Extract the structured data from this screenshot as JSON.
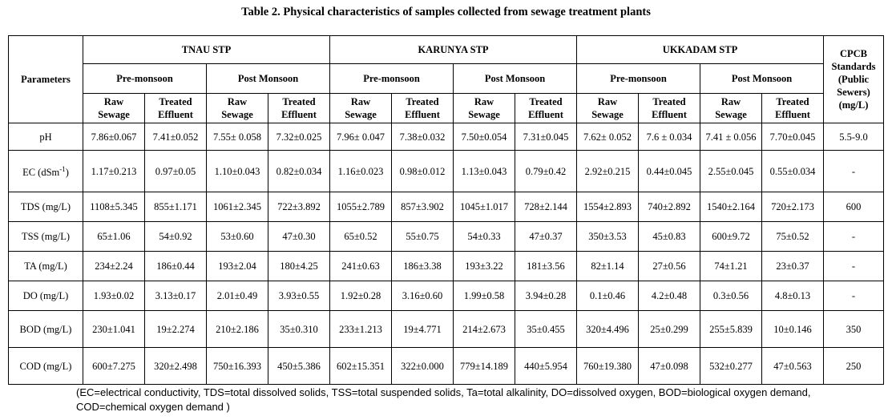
{
  "caption": "Table 2. Physical characteristics of samples collected from sewage treatment plants",
  "header": {
    "parameters": "Parameters",
    "plants": [
      "TNAU STP",
      "KARUNYA STP",
      "UKKADAM STP"
    ],
    "seasons": [
      "Pre-monsoon",
      "Post Monsoon"
    ],
    "raw": [
      "Raw",
      "Sewage"
    ],
    "treated": [
      "Treated",
      "Effluent"
    ],
    "standards": [
      "CPCB",
      "Standards",
      "(Public",
      "Sewers)",
      "(mg/L)"
    ]
  },
  "rows": [
    {
      "param": "pH",
      "values": [
        "7.86±0.067",
        "7.41±0.052",
        "7.55± 0.058",
        "7.32±0.025",
        "7.96± 0.047",
        "7.38±0.032",
        "7.50±0.054",
        "7.31±0.045",
        "7.62± 0.052",
        "7.6 ± 0.034",
        "7.41 ± 0.056",
        "7.70±0.045"
      ],
      "std": "5.5-9.0"
    },
    {
      "param": "EC (dSm",
      "sup": "-1",
      "param_tail": ")",
      "values": [
        "1.17±0.213",
        "0.97±0.05",
        "1.10±0.043",
        "0.82±0.034",
        "1.16±0.023",
        "0.98±0.012",
        "1.13±0.043",
        "0.79±0.42",
        "2.92±0.215",
        "0.44±0.045",
        "2.55±0.045",
        "0.55±0.034"
      ],
      "std": "-"
    },
    {
      "param": "TDS (mg/L)",
      "values": [
        "1108±5.345",
        "855±1.171",
        "1061±2.345",
        "722±3.892",
        "1055±2.789",
        "857±3.902",
        "1045±1.017",
        "728±2.144",
        "1554±2.893",
        "740±2.892",
        "1540±2.164",
        "720±2.173"
      ],
      "std": "600"
    },
    {
      "param": "TSS (mg/L)",
      "values": [
        "65±1.06",
        "54±0.92",
        "53±0.60",
        "47±0.30",
        "65±0.52",
        "55±0.75",
        "54±0.33",
        "47±0.37",
        "350±3.53",
        "45±0.83",
        "600±9.72",
        "75±0.52"
      ],
      "std": "-"
    },
    {
      "param": "TA (mg/L)",
      "values": [
        "234±2.24",
        "186±0.44",
        "193±2.04",
        "180±4.25",
        "241±0.63",
        "186±3.38",
        "193±3.22",
        "181±3.56",
        "82±1.14",
        "27±0.56",
        "74±1.21",
        "23±0.37"
      ],
      "std": "-"
    },
    {
      "param": "DO (mg/L)",
      "values": [
        "1.93±0.02",
        "3.13±0.17",
        "2.01±0.49",
        "3.93±0.55",
        "1.92±0.28",
        "3.16±0.60",
        "1.99±0.58",
        "3.94±0.28",
        "0.1±0.46",
        "4.2±0.48",
        "0.3±0.56",
        "4.8±0.13"
      ],
      "std": "-"
    },
    {
      "param": "BOD (mg/L)",
      "values": [
        "230±1.041",
        "19±2.274",
        "210±2.186",
        "35±0.310",
        "233±1.213",
        "19±4.771",
        "214±2.673",
        "35±0.455",
        "320±4.496",
        "25±0.299",
        "255±5.839",
        "10±0.146"
      ],
      "std": "350"
    },
    {
      "param": "COD (mg/L)",
      "values": [
        "600±7.275",
        "320±2.498",
        "750±16.393",
        "450±5.386",
        "602±15.351",
        "322±0.000",
        "779±14.189",
        "440±5.954",
        "760±19.380",
        "47±0.098",
        "532±0.277",
        "47±0.563"
      ],
      "std": "250"
    }
  ],
  "footnote": "(EC=electrical conductivity, TDS=total dissolved solids, TSS=total suspended solids, Ta=total alkalinity, DO=dissolved oxygen, BOD=biological oxygen demand, COD=chemical oxygen demand )"
}
